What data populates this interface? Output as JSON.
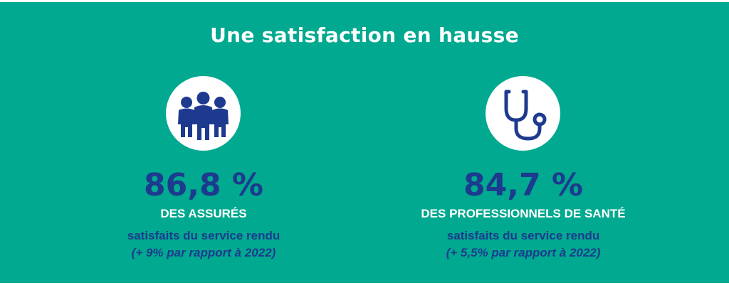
{
  "title": "Une satisfaction en hausse",
  "stats": [
    {
      "value": "86,8 %",
      "label": "DES ASSURÉS",
      "subtitle": "satisfaits du service rendu",
      "comparison": "(+ 9% par rapport à 2022)",
      "icon": "people-group-icon"
    },
    {
      "value": "84,7 %",
      "label": "DES PROFESSIONNELS DE SANTÉ",
      "subtitle": "satisfaits du service rendu",
      "comparison": "(+ 5,5% par rapport à 2022)",
      "icon": "stethoscope-icon"
    }
  ],
  "colors": {
    "background": "#00a98f",
    "accent": "#1d3a8f",
    "text_light": "#ffffff"
  }
}
